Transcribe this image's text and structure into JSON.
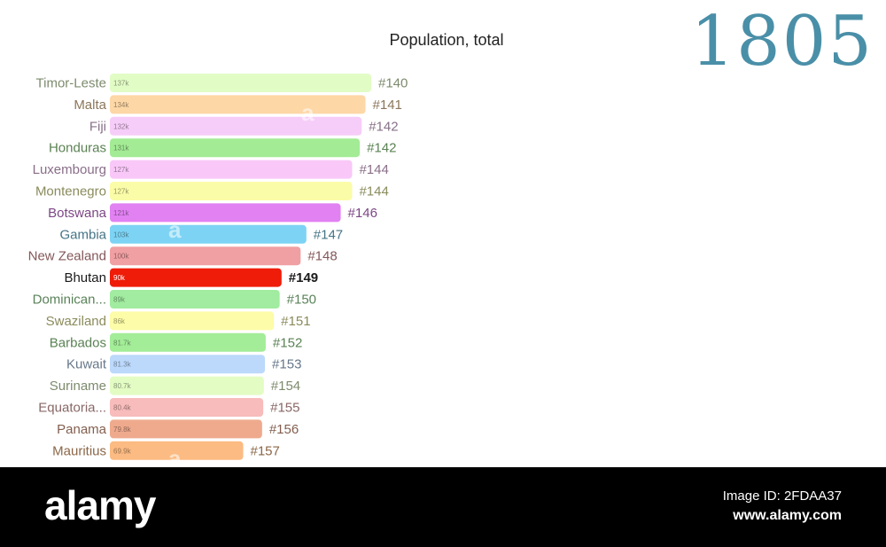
{
  "chart_data": {
    "type": "bar",
    "orientation": "horizontal",
    "title": "Population, total",
    "year": "1805",
    "unit": "k",
    "xlabel": "",
    "ylabel": "",
    "grid": false,
    "highlight": "Bhutan",
    "bars": [
      {
        "country": "Timor-Leste",
        "value": 137,
        "value_label": "137k",
        "rank": "#140",
        "color": "#e2fcc6"
      },
      {
        "country": "Malta",
        "value": 134,
        "value_label": "134k",
        "rank": "#141",
        "color": "#fdd7a6"
      },
      {
        "country": "Fiji",
        "value": 132,
        "value_label": "132k",
        "rank": "#142",
        "color": "#f6cdf8"
      },
      {
        "country": "Honduras",
        "value": 131,
        "value_label": "131k",
        "rank": "#142",
        "color": "#a3eb95"
      },
      {
        "country": "Luxembourg",
        "value": 127,
        "value_label": "127k",
        "rank": "#144",
        "color": "#f9c8f8"
      },
      {
        "country": "Montenegro",
        "value": 127,
        "value_label": "127k",
        "rank": "#144",
        "color": "#fbfca8"
      },
      {
        "country": "Botswana",
        "value": 121,
        "value_label": "121k",
        "rank": "#146",
        "color": "#e181f2"
      },
      {
        "country": "Gambia",
        "value": 103,
        "value_label": "103k",
        "rank": "#147",
        "color": "#7dd3f4"
      },
      {
        "country": "New Zealand",
        "value": 100,
        "value_label": "100k",
        "rank": "#148",
        "color": "#f09fa2"
      },
      {
        "country": "Bhutan",
        "value": 90,
        "value_label": "90k",
        "rank": "#149",
        "color": "#ef1c0a"
      },
      {
        "country": "Dominican...",
        "value": 89,
        "value_label": "89k",
        "rank": "#150",
        "color": "#a1eca0"
      },
      {
        "country": "Swaziland",
        "value": 86,
        "value_label": "86k",
        "rank": "#151",
        "color": "#fdfca8"
      },
      {
        "country": "Barbados",
        "value": 81.7,
        "value_label": "81.7k",
        "rank": "#152",
        "color": "#a3ec98"
      },
      {
        "country": "Kuwait",
        "value": 81.3,
        "value_label": "81.3k",
        "rank": "#153",
        "color": "#bcd9fb"
      },
      {
        "country": "Suriname",
        "value": 80.7,
        "value_label": "80.7k",
        "rank": "#154",
        "color": "#e3fcc4"
      },
      {
        "country": "Equatoria...",
        "value": 80.4,
        "value_label": "80.4k",
        "rank": "#155",
        "color": "#f7bcbb"
      },
      {
        "country": "Panama",
        "value": 79.8,
        "value_label": "79.8k",
        "rank": "#156",
        "color": "#efaa8d"
      },
      {
        "country": "Mauritius",
        "value": 69.9,
        "value_label": "69.9k",
        "rank": "#157",
        "color": "#fcbb82"
      }
    ]
  },
  "footer": {
    "logo": "alamy",
    "image_id": "Image ID: 2FDAA37",
    "url": "www.alamy.com"
  },
  "watermark": "a"
}
